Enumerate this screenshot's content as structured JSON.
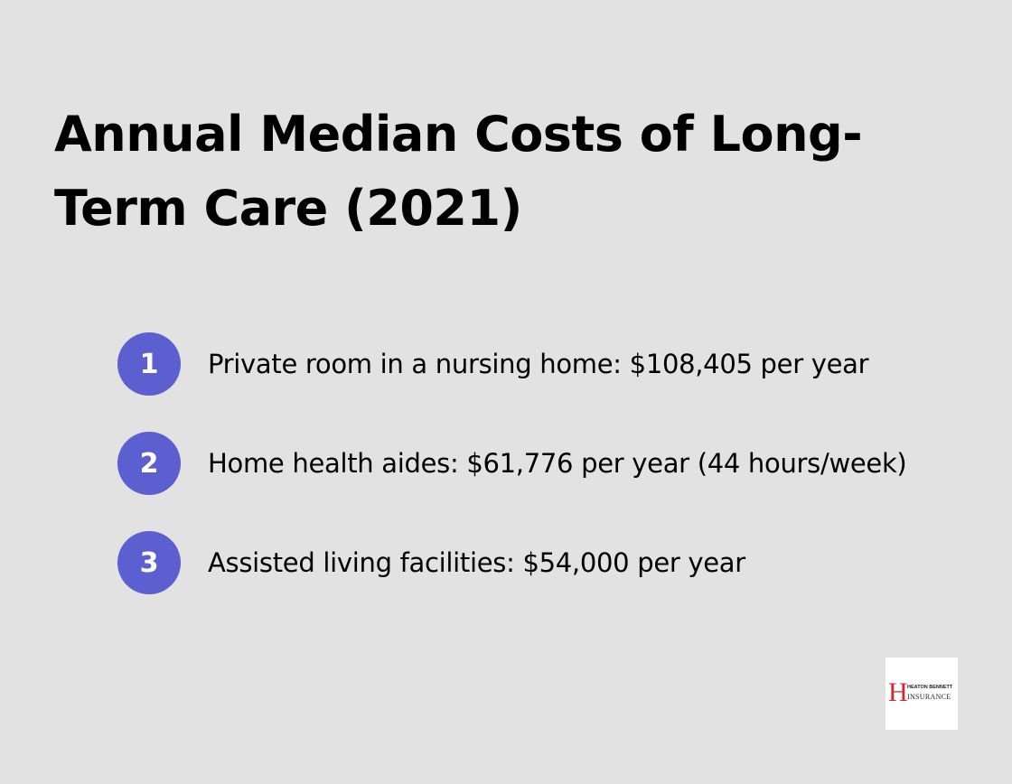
{
  "title": "Annual Median Costs of Long-Term Care (2021)",
  "items": [
    {
      "number": "1",
      "text": "Private room in a nursing home: $108,405 per year"
    },
    {
      "number": "2",
      "text": "Home health aides: $61,776 per year (44 hours/week)"
    },
    {
      "number": "3",
      "text": "Assisted living facilities: $54,000 per year"
    }
  ],
  "logo": {
    "letter": "H",
    "line1": "HEATON BENNETT",
    "line2": "INSURANCE"
  },
  "colors": {
    "background": "#e1e2e1",
    "accent": "#5c5fd0",
    "logo_red": "#d9232e"
  }
}
